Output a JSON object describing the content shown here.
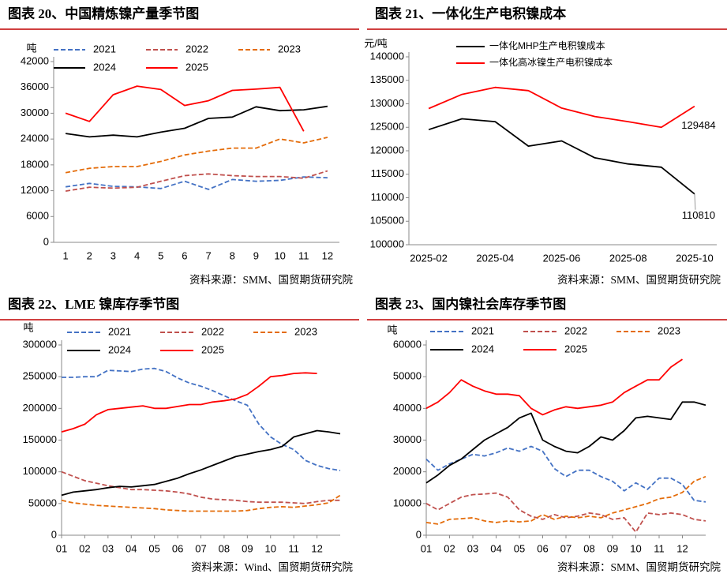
{
  "chart_data": [
    {
      "type": "line",
      "title": "图表 20、中国精炼镍产量季节图",
      "source": "资料来源：SMM、国贸期货研究院",
      "ylabel": "吨",
      "categories": [
        "1",
        "2",
        "3",
        "4",
        "5",
        "6",
        "7",
        "8",
        "9",
        "10",
        "11",
        "12"
      ],
      "ylim": [
        0,
        42000
      ],
      "yticks": [
        0,
        6000,
        12000,
        18000,
        24000,
        30000,
        36000,
        42000
      ],
      "legend_columns": 3,
      "series": [
        {
          "name": "2021",
          "color": "#4472c4",
          "style": "dashed",
          "values": [
            12900,
            13700,
            13000,
            12900,
            12500,
            14200,
            12300,
            14600,
            14200,
            14400,
            15200,
            15000
          ]
        },
        {
          "name": "2022",
          "color": "#c0504d",
          "style": "dashed",
          "values": [
            11900,
            12800,
            12600,
            12800,
            14200,
            15500,
            15900,
            15500,
            15300,
            15300,
            14900,
            16600
          ]
        },
        {
          "name": "2023",
          "color": "#e46c0a",
          "style": "dashed",
          "values": [
            16200,
            17200,
            17600,
            17600,
            18800,
            20300,
            21200,
            21900,
            21900,
            24000,
            23100,
            24400
          ]
        },
        {
          "name": "2024",
          "color": "#000000",
          "style": "solid",
          "values": [
            25300,
            24500,
            24900,
            24500,
            25600,
            26500,
            28800,
            29100,
            31500,
            30600,
            30800,
            31600
          ]
        },
        {
          "name": "2025",
          "color": "#ff0000",
          "style": "solid",
          "values": [
            30000,
            28100,
            34300,
            36300,
            35500,
            31800,
            32900,
            35300,
            35600,
            36000,
            25800,
            null
          ]
        }
      ]
    },
    {
      "type": "line",
      "title": "图表 21、一体化生产电积镍成本",
      "source": "资料来源：SMM、国贸期货研究院",
      "ylabel": "元/吨",
      "categories": [
        "2025-02",
        null,
        "2025-04",
        null,
        "2025-06",
        null,
        "2025-08",
        null,
        "2025-10"
      ],
      "ylim": [
        100000,
        140000
      ],
      "yticks": [
        100000,
        105000,
        110000,
        115000,
        120000,
        125000,
        130000,
        135000,
        140000
      ],
      "legend_columns": 1,
      "series": [
        {
          "name": "一体化MHP生产电积镍成本",
          "color": "#000000",
          "style": "solid",
          "values": [
            124500,
            126800,
            126200,
            121000,
            122100,
            118500,
            117200,
            116500,
            110810
          ]
        },
        {
          "name": "一体化高冰镍生产电积镍成本",
          "color": "#ff0000",
          "style": "solid",
          "values": [
            129000,
            132000,
            133500,
            132800,
            129100,
            127300,
            126200,
            125000,
            129484
          ]
        }
      ]
    },
    {
      "type": "line",
      "title": "图表 22、LME 镍库存季节图",
      "source": "资料来源：Wind、国贸期货研究院",
      "ylabel": "吨",
      "x": [
        1,
        1.5,
        2,
        2.5,
        3,
        3.5,
        4,
        4.5,
        5,
        5.5,
        6,
        6.5,
        7,
        7.5,
        8,
        8.5,
        9,
        9.5,
        10,
        10.5,
        11,
        11.5,
        12,
        12.5,
        13
      ],
      "xlim": [
        1,
        13
      ],
      "xticks": [
        {
          "value": 1,
          "label": "01"
        },
        {
          "value": 2,
          "label": "02"
        },
        {
          "value": 3,
          "label": "03"
        },
        {
          "value": 4,
          "label": "04"
        },
        {
          "value": 5,
          "label": "05"
        },
        {
          "value": 6,
          "label": "06"
        },
        {
          "value": 7,
          "label": "07"
        },
        {
          "value": 8,
          "label": "08"
        },
        {
          "value": 9,
          "label": "09"
        },
        {
          "value": 10,
          "label": "10"
        },
        {
          "value": 11,
          "label": "11"
        },
        {
          "value": 12,
          "label": "12"
        }
      ],
      "ylim": [
        0,
        300000
      ],
      "yticks": [
        0,
        50000,
        100000,
        150000,
        200000,
        250000,
        300000
      ],
      "legend_columns": 3,
      "series": [
        {
          "name": "2021",
          "color": "#4472c4",
          "style": "dashed",
          "values": [
            249000,
            249000,
            250000,
            250000,
            260000,
            259000,
            258000,
            262000,
            263000,
            258000,
            248000,
            240000,
            235000,
            228000,
            220000,
            212000,
            205000,
            175000,
            155000,
            143000,
            135000,
            118000,
            110000,
            105000,
            102000
          ]
        },
        {
          "name": "2022",
          "color": "#c0504d",
          "style": "dashed",
          "values": [
            100000,
            93000,
            86000,
            82000,
            78000,
            75000,
            72000,
            72000,
            71000,
            70000,
            68000,
            65000,
            60000,
            57000,
            56000,
            55000,
            53000,
            52000,
            52000,
            52000,
            51000,
            50000,
            53000,
            55000,
            55000
          ]
        },
        {
          "name": "2023",
          "color": "#e46c0a",
          "style": "dashed",
          "values": [
            55000,
            51000,
            49000,
            47000,
            46000,
            45000,
            44000,
            43000,
            42000,
            40000,
            39000,
            38000,
            38000,
            38000,
            38000,
            38000,
            39000,
            42000,
            44000,
            45000,
            44000,
            46000,
            48000,
            51000,
            63000
          ]
        },
        {
          "name": "2024",
          "color": "#000000",
          "style": "solid",
          "values": [
            63000,
            68000,
            70000,
            72000,
            75000,
            77000,
            76000,
            78000,
            80000,
            85000,
            90000,
            97000,
            103000,
            110000,
            117000,
            124000,
            128000,
            132000,
            135000,
            140000,
            155000,
            160000,
            165000,
            163000,
            160000
          ]
        },
        {
          "name": "2025",
          "color": "#ff0000",
          "style": "solid",
          "values": [
            163000,
            168000,
            175000,
            190000,
            198000,
            200000,
            202000,
            204000,
            200000,
            200000,
            203000,
            206000,
            206000,
            210000,
            212000,
            215000,
            222000,
            235000,
            250000,
            252000,
            255000,
            256000,
            255000,
            null,
            null
          ]
        }
      ]
    },
    {
      "type": "line",
      "title": "图表 23、国内镍社会库存季节图",
      "source": "资料来源：SMM、国贸期货研究院",
      "ylabel": "吨",
      "x": [
        1,
        1.5,
        2,
        2.5,
        3,
        3.5,
        4,
        4.5,
        5,
        5.5,
        6,
        6.5,
        7,
        7.5,
        8,
        8.5,
        9,
        9.5,
        10,
        10.5,
        11,
        11.5,
        12,
        12.5,
        13
      ],
      "xlim": [
        1,
        13
      ],
      "xticks": [
        {
          "value": 1,
          "label": "01"
        },
        {
          "value": 2,
          "label": "02"
        },
        {
          "value": 3,
          "label": "03"
        },
        {
          "value": 4,
          "label": "04"
        },
        {
          "value": 5,
          "label": "05"
        },
        {
          "value": 6,
          "label": "06"
        },
        {
          "value": 7,
          "label": "07"
        },
        {
          "value": 8,
          "label": "08"
        },
        {
          "value": 9,
          "label": "09"
        },
        {
          "value": 10,
          "label": "10"
        },
        {
          "value": 11,
          "label": "11"
        },
        {
          "value": 12,
          "label": "12"
        }
      ],
      "ylim": [
        0,
        60000
      ],
      "yticks": [
        0,
        10000,
        20000,
        30000,
        40000,
        50000,
        60000
      ],
      "legend_columns": 3,
      "series": [
        {
          "name": "2021",
          "color": "#4472c4",
          "style": "dashed",
          "values": [
            24000,
            20500,
            22500,
            24000,
            25500,
            25000,
            26000,
            27500,
            26500,
            28000,
            26500,
            21000,
            18500,
            20500,
            20500,
            18500,
            17000,
            14000,
            16500,
            14500,
            18000,
            18000,
            16000,
            11000,
            10500
          ]
        },
        {
          "name": "2022",
          "color": "#c0504d",
          "style": "dashed",
          "values": [
            10000,
            8000,
            10000,
            12000,
            12800,
            13000,
            13300,
            12000,
            8000,
            6000,
            5000,
            6500,
            5500,
            6000,
            7000,
            6500,
            5000,
            5500,
            1000,
            7000,
            6500,
            7000,
            6500,
            5000,
            4500
          ]
        },
        {
          "name": "2023",
          "color": "#e46c0a",
          "style": "dashed",
          "values": [
            4000,
            3500,
            5000,
            5200,
            5500,
            4500,
            4000,
            4500,
            4200,
            4500,
            6500,
            5000,
            6000,
            5500,
            6000,
            5500,
            7000,
            8000,
            9000,
            10000,
            11500,
            12000,
            13500,
            17000,
            18500
          ]
        },
        {
          "name": "2024",
          "color": "#000000",
          "style": "solid",
          "values": [
            16500,
            19000,
            22000,
            24000,
            27000,
            30000,
            32000,
            34000,
            37000,
            38500,
            30000,
            28000,
            26500,
            26000,
            28000,
            31000,
            30000,
            33000,
            37000,
            37500,
            37000,
            36500,
            42000,
            42000,
            41000
          ]
        },
        {
          "name": "2025",
          "color": "#ff0000",
          "style": "solid",
          "values": [
            40000,
            42000,
            45000,
            49000,
            47000,
            45500,
            44500,
            44500,
            44000,
            40000,
            38000,
            39500,
            40500,
            40000,
            40500,
            41000,
            42000,
            45000,
            47000,
            49000,
            49000,
            53000,
            55500,
            null,
            null
          ]
        }
      ]
    }
  ]
}
